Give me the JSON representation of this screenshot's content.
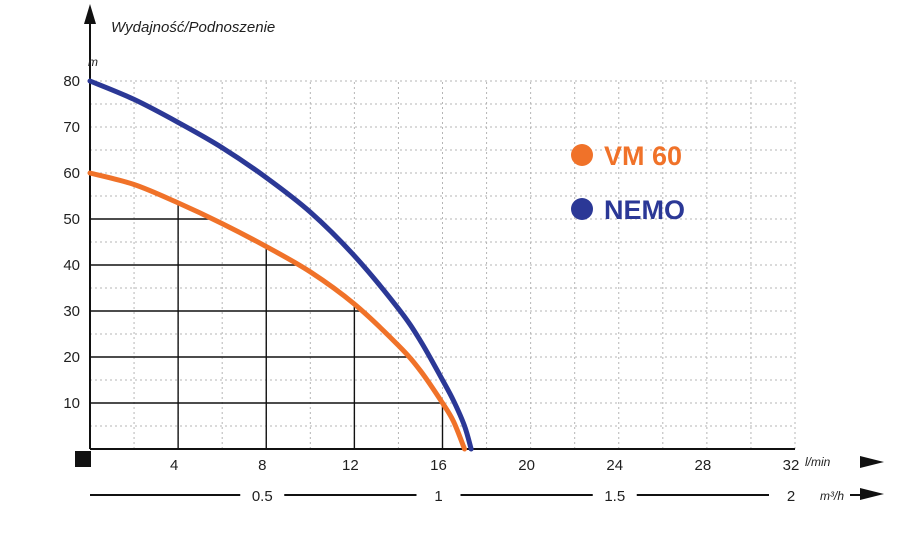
{
  "chart_data": {
    "type": "line",
    "title": "Wydajność/Podnoszenie",
    "y_unit": "m",
    "x_unit": "l/min",
    "x2_unit": "m³/h",
    "xlim": [
      0,
      32
    ],
    "ylim": [
      0,
      80
    ],
    "x_ticks": [
      "4",
      "8",
      "12",
      "16",
      "20",
      "24",
      "28",
      "32"
    ],
    "y_ticks": [
      "10",
      "20",
      "30",
      "40",
      "50",
      "60",
      "70",
      "80"
    ],
    "x2_ticks": [
      {
        "label": "0.5",
        "x": 8
      },
      {
        "label": "1",
        "x": 16
      },
      {
        "label": "1.5",
        "x": 24
      },
      {
        "label": "2",
        "x": 32
      }
    ],
    "grid": true,
    "legend_position": "top-right",
    "series": [
      {
        "name": "VM 60",
        "color": "#f07229",
        "x": [
          0,
          2,
          4,
          6,
          8,
          10,
          12,
          14,
          15,
          16,
          16.5,
          17
        ],
        "y": [
          60,
          57.5,
          53.5,
          49,
          44,
          38.5,
          31.5,
          22.5,
          17,
          10,
          6,
          0
        ]
      },
      {
        "name": "NEMO",
        "color": "#2b3896",
        "x": [
          0,
          2,
          4,
          6,
          8,
          10,
          12,
          14,
          15,
          16,
          16.5,
          17,
          17.3
        ],
        "y": [
          80,
          76,
          71,
          65.5,
          59,
          51.5,
          42,
          30.5,
          23.5,
          15,
          10.5,
          5,
          0
        ]
      }
    ]
  }
}
